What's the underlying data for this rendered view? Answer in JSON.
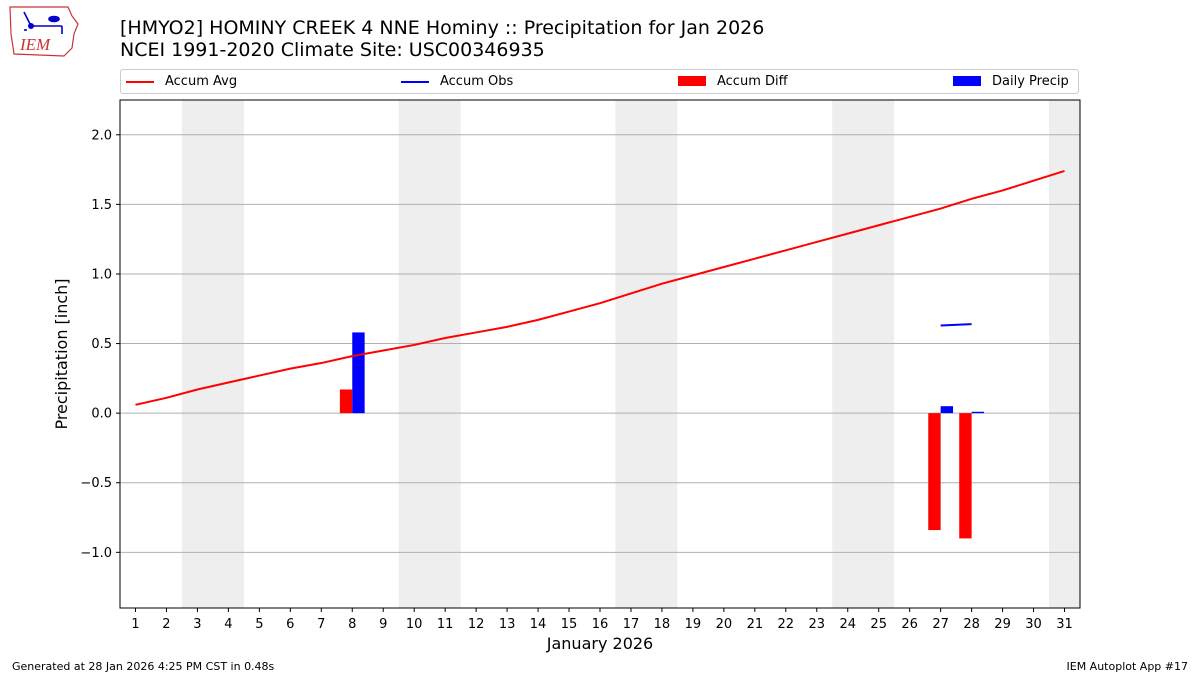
{
  "header": {
    "title_line1": "[HMYO2] HOMINY CREEK 4 NNE Hominy :: Precipitation for Jan 2026",
    "title_line2": "NCEI 1991-2020 Climate Site: USC00346935",
    "logo_text": "IEM"
  },
  "legend": [
    {
      "label": "Accum Avg",
      "kind": "line",
      "color": "#ff0000"
    },
    {
      "label": "Accum Obs",
      "kind": "line",
      "color": "#0000ff"
    },
    {
      "label": "Accum Diff",
      "kind": "patch",
      "color": "#ff0000"
    },
    {
      "label": "Daily Precip",
      "kind": "patch",
      "color": "#0000ff"
    }
  ],
  "footer": {
    "left": "Generated at 28 Jan 2026 4:25 PM CST in 0.48s",
    "right": "IEM Autoplot App #17"
  },
  "chart_data": {
    "type": "bar",
    "title": "[HMYO2] HOMINY CREEK 4 NNE Hominy :: Precipitation for Jan 2026",
    "xlabel": "January 2026",
    "ylabel": "Precipitation [inch]",
    "xlim": [
      0.5,
      31.5
    ],
    "ylim": [
      -1.4,
      2.25
    ],
    "x_ticks": [
      1,
      2,
      3,
      4,
      5,
      6,
      7,
      8,
      9,
      10,
      11,
      12,
      13,
      14,
      15,
      16,
      17,
      18,
      19,
      20,
      21,
      22,
      23,
      24,
      25,
      26,
      27,
      28,
      29,
      30,
      31
    ],
    "y_ticks": [
      -1.0,
      -0.5,
      0.0,
      0.5,
      1.0,
      1.5,
      2.0
    ],
    "y_tick_labels": [
      "−1.0",
      "−0.5",
      "0.0",
      "0.5",
      "1.0",
      "1.5",
      "2.0"
    ],
    "grid": "horizontal",
    "weekend_shading": [
      [
        2.5,
        4.5
      ],
      [
        9.5,
        11.5
      ],
      [
        16.5,
        18.5
      ],
      [
        23.5,
        25.5
      ],
      [
        30.5,
        31.5
      ]
    ],
    "shade_color": "#eeeeee",
    "series": [
      {
        "name": "Accum Avg",
        "type": "line",
        "color": "#ff0000",
        "x": [
          1,
          2,
          3,
          4,
          5,
          6,
          7,
          8,
          9,
          10,
          11,
          12,
          13,
          14,
          15,
          16,
          17,
          18,
          19,
          20,
          21,
          22,
          23,
          24,
          25,
          26,
          27,
          28,
          29,
          30,
          31
        ],
        "values": [
          0.06,
          0.11,
          0.17,
          0.22,
          0.27,
          0.32,
          0.36,
          0.41,
          0.45,
          0.49,
          0.54,
          0.58,
          0.62,
          0.67,
          0.73,
          0.79,
          0.86,
          0.93,
          0.99,
          1.05,
          1.11,
          1.17,
          1.23,
          1.29,
          1.35,
          1.41,
          1.47,
          1.54,
          1.6,
          1.67,
          1.74
        ]
      },
      {
        "name": "Accum Obs",
        "type": "line",
        "color": "#0000ff",
        "x": [
          27,
          28
        ],
        "values": [
          0.63,
          0.64
        ]
      },
      {
        "name": "Accum Diff",
        "type": "bar",
        "color": "#ff0000",
        "x": [
          8,
          27,
          28
        ],
        "values": [
          0.17,
          -0.84,
          -0.9
        ]
      },
      {
        "name": "Daily Precip",
        "type": "bar",
        "color": "#0000ff",
        "x": [
          8,
          27,
          28
        ],
        "values": [
          0.58,
          0.05,
          0.01
        ]
      }
    ]
  }
}
